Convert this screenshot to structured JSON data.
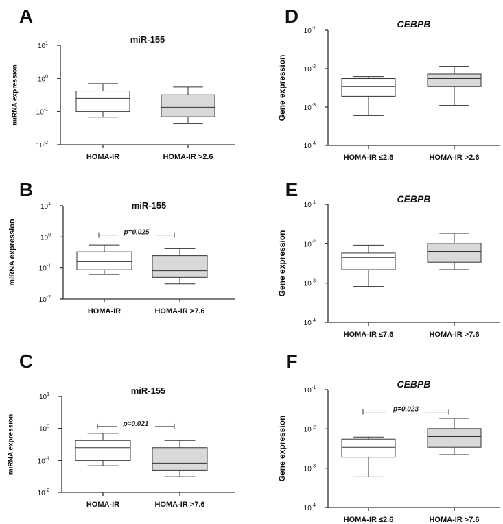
{
  "chart_data": [
    {
      "panel": "A",
      "type": "boxplot",
      "title": "miR-155",
      "title_italic": false,
      "ylabel": "miRNA expression",
      "yscale": "log",
      "ylim": [
        0.01,
        10
      ],
      "yticks": [
        {
          "base": "10",
          "exp": "-2"
        },
        {
          "base": "10",
          "exp": "-1"
        },
        {
          "base": "10",
          "exp": "0"
        },
        {
          "base": "10",
          "exp": "1"
        }
      ],
      "categories": [
        "HOMA-IR",
        "HOMA-IR >2.6"
      ],
      "boxes": [
        {
          "min": 0.068,
          "q1": 0.1,
          "median": 0.25,
          "q3": 0.42,
          "max": 0.7,
          "fill": "#ffffff"
        },
        {
          "min": 0.043,
          "q1": 0.07,
          "median": 0.135,
          "q3": 0.32,
          "max": 0.55,
          "fill": "#d9d9d9"
        }
      ],
      "significance": null
    },
    {
      "panel": "B",
      "type": "boxplot",
      "title": "miR-155",
      "title_italic": false,
      "ylabel": "miRNA expression",
      "yscale": "log",
      "ylim": [
        0.01,
        10
      ],
      "yticks": [
        {
          "base": "10",
          "exp": "-2"
        },
        {
          "base": "10",
          "exp": "-1"
        },
        {
          "base": "10",
          "exp": "0"
        },
        {
          "base": "10",
          "exp": "1"
        }
      ],
      "categories": [
        "HOMA-IR",
        "HOMA-IR >7.6"
      ],
      "boxes": [
        {
          "min": 0.062,
          "q1": 0.088,
          "median": 0.16,
          "q3": 0.33,
          "max": 0.55,
          "fill": "#ffffff"
        },
        {
          "min": 0.031,
          "q1": 0.05,
          "median": 0.082,
          "q3": 0.25,
          "max": 0.42,
          "fill": "#d9d9d9"
        }
      ],
      "significance": {
        "label": "p=0.025",
        "level": 1.15
      }
    },
    {
      "panel": "C",
      "type": "boxplot",
      "title": "miR-155",
      "title_italic": false,
      "ylabel": "miRNA expression",
      "yscale": "log",
      "ylim": [
        0.01,
        10
      ],
      "yticks": [
        {
          "base": "10",
          "exp": "-2"
        },
        {
          "base": "10",
          "exp": "-1"
        },
        {
          "base": "10",
          "exp": "0"
        },
        {
          "base": "10",
          "exp": "1"
        }
      ],
      "categories": [
        "HOMA-IR",
        "HOMA-IR >7.6"
      ],
      "boxes": [
        {
          "min": 0.068,
          "q1": 0.1,
          "median": 0.25,
          "q3": 0.42,
          "max": 0.7,
          "fill": "#ffffff"
        },
        {
          "min": 0.031,
          "q1": 0.05,
          "median": 0.082,
          "q3": 0.25,
          "max": 0.42,
          "fill": "#d9d9d9"
        }
      ],
      "significance": {
        "label": "p=0.021",
        "level": 1.15
      }
    },
    {
      "panel": "D",
      "type": "boxplot",
      "title": "CEBPB",
      "title_italic": true,
      "ylabel": "Gene expression",
      "yscale": "log",
      "ylim": [
        0.0001,
        0.1
      ],
      "yticks": [
        {
          "base": "10",
          "exp": "-4"
        },
        {
          "base": "10",
          "exp": "-3"
        },
        {
          "base": "10",
          "exp": "-2"
        },
        {
          "base": "10",
          "exp": "-1"
        }
      ],
      "categories": [
        "HOMA-IR ≤2.6",
        "HOMA-IR >2.6"
      ],
      "boxes": [
        {
          "min": 0.0006,
          "q1": 0.0019,
          "median": 0.0034,
          "q3": 0.0055,
          "max": 0.0062,
          "fill": "#ffffff"
        },
        {
          "min": 0.0011,
          "q1": 0.0034,
          "median": 0.0055,
          "q3": 0.0072,
          "max": 0.0115,
          "fill": "#d9d9d9"
        }
      ],
      "significance": null
    },
    {
      "panel": "E",
      "type": "boxplot",
      "title": "CEBPB",
      "title_italic": true,
      "ylabel": "Gene expression",
      "yscale": "log",
      "ylim": [
        0.0001,
        0.1
      ],
      "yticks": [
        {
          "base": "10",
          "exp": "-4"
        },
        {
          "base": "10",
          "exp": "-3"
        },
        {
          "base": "10",
          "exp": "-2"
        },
        {
          "base": "10",
          "exp": "-1"
        }
      ],
      "categories": [
        "HOMA-IR ≤7.6",
        "HOMA-IR >7.6"
      ],
      "boxes": [
        {
          "min": 0.00082,
          "q1": 0.0022,
          "median": 0.0045,
          "q3": 0.0058,
          "max": 0.0092,
          "fill": "#ffffff"
        },
        {
          "min": 0.0022,
          "q1": 0.0034,
          "median": 0.0064,
          "q3": 0.0102,
          "max": 0.0185,
          "fill": "#d9d9d9"
        }
      ],
      "significance": null
    },
    {
      "panel": "F",
      "type": "boxplot",
      "title": "CEBPB",
      "title_italic": true,
      "ylabel": "Gene expression",
      "yscale": "log",
      "ylim": [
        0.0001,
        0.1
      ],
      "yticks": [
        {
          "base": "10",
          "exp": "-4"
        },
        {
          "base": "10",
          "exp": "-3"
        },
        {
          "base": "10",
          "exp": "-2"
        },
        {
          "base": "10",
          "exp": "-1"
        }
      ],
      "categories": [
        "HOMA-IR ≤2.6",
        "HOMA-IR >7.6"
      ],
      "boxes": [
        {
          "min": 0.0006,
          "q1": 0.0019,
          "median": 0.0034,
          "q3": 0.0055,
          "max": 0.0062,
          "fill": "#ffffff"
        },
        {
          "min": 0.0022,
          "q1": 0.0034,
          "median": 0.0064,
          "q3": 0.0102,
          "max": 0.0185,
          "fill": "#d9d9d9"
        }
      ],
      "significance": {
        "label": "p=0.023",
        "level": 0.027
      }
    }
  ]
}
